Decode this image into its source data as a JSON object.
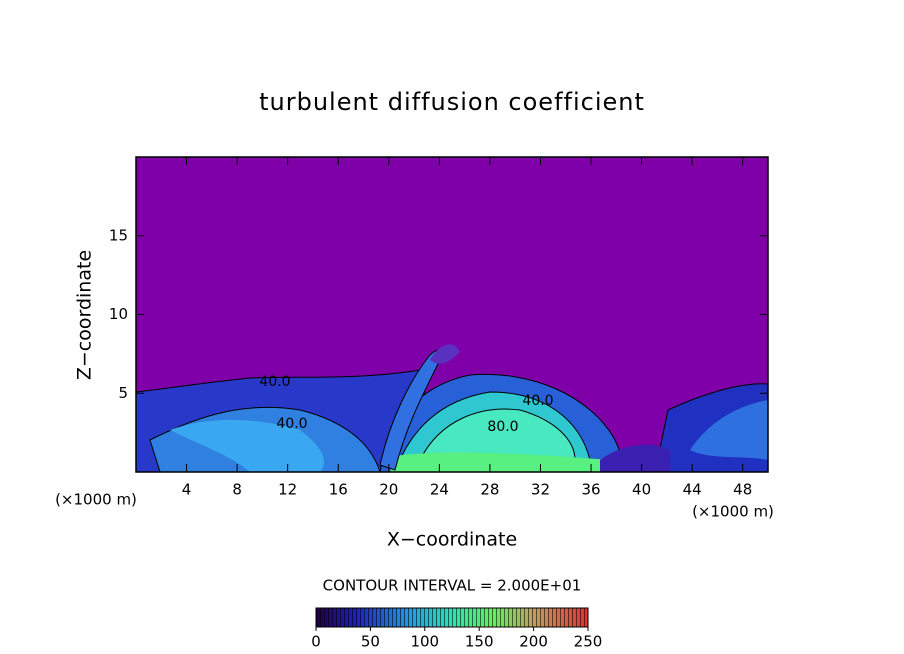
{
  "chart_data": {
    "type": "contour",
    "title": "turbulent diffusion coefficient",
    "xlabel": "X−coordinate",
    "ylabel": "Z−coordinate",
    "x_unit_label": "(×1000 m)",
    "y_unit_label": "(×1000 m)",
    "xlim": [
      0,
      50
    ],
    "xticks": [
      4,
      8,
      12,
      16,
      20,
      24,
      28,
      32,
      36,
      40,
      44,
      48
    ],
    "ylim": [
      0,
      20
    ],
    "yticks": [
      5,
      10,
      15
    ],
    "contour_labels": [
      "40.0",
      "40.0",
      "40.0",
      "80.0"
    ],
    "contour_interval": "CONTOUR INTERVAL = 2.000E+01",
    "colorbar": {
      "lim": [
        0,
        250
      ],
      "ticks": [
        0,
        50,
        100,
        150,
        200,
        250
      ]
    }
  }
}
